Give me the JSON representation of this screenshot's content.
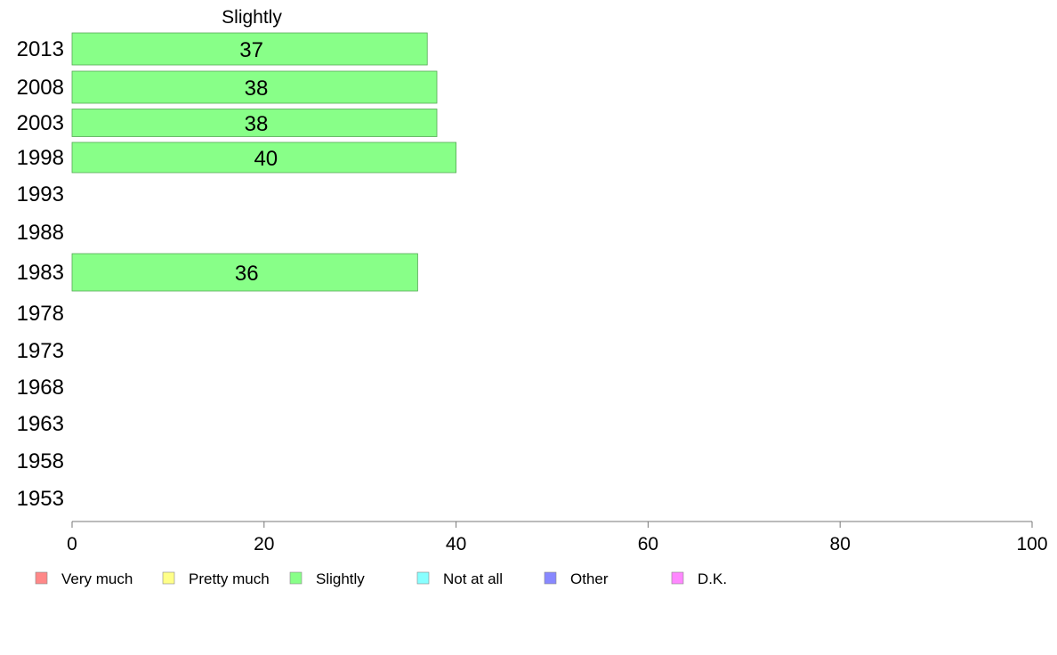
{
  "chart_data": {
    "type": "bar",
    "orientation": "horizontal",
    "title": "Slightly",
    "categories": [
      "2013",
      "2008",
      "2003",
      "1998",
      "1993",
      "1988",
      "1983",
      "1978",
      "1973",
      "1968",
      "1963",
      "1958",
      "1953"
    ],
    "series": [
      {
        "name": "Slightly",
        "color": "#88ff88",
        "values": [
          37,
          38,
          38,
          40,
          null,
          null,
          36,
          null,
          null,
          null,
          null,
          null,
          null
        ]
      }
    ],
    "data_labels": [
      "37",
      "38",
      "38",
      "40",
      "",
      "",
      "36",
      "",
      "",
      "",
      "",
      "",
      ""
    ],
    "xlim": [
      0,
      100
    ],
    "xticks": [
      0,
      20,
      40,
      60,
      80,
      100
    ],
    "grid": false,
    "legend_position": "bottom",
    "legend": [
      {
        "label": "Very much",
        "color": "#ff8888"
      },
      {
        "label": "Pretty much",
        "color": "#ffff88"
      },
      {
        "label": "Slightly",
        "color": "#88ff88"
      },
      {
        "label": "Not at all",
        "color": "#88ffff"
      },
      {
        "label": "Other",
        "color": "#8888ff"
      },
      {
        "label": "D.K.",
        "color": "#ff88ff"
      }
    ]
  }
}
